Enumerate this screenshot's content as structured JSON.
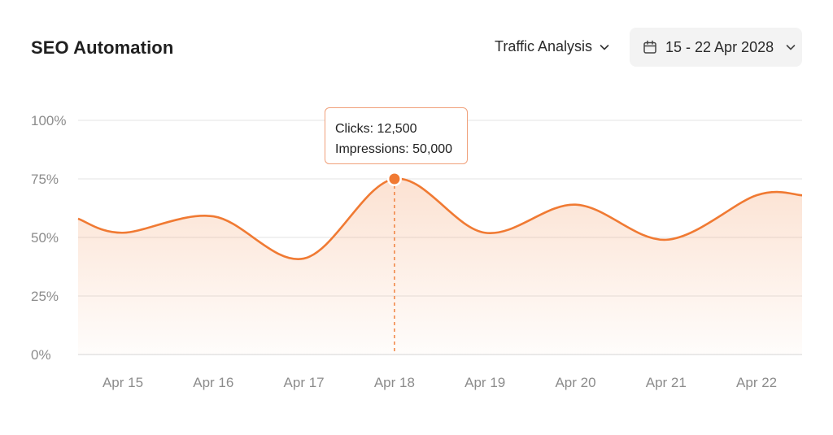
{
  "header": {
    "title": "SEO Automation",
    "filter_label": "Traffic Analysis",
    "date_range": "15 - 22 Apr 2028"
  },
  "tooltip": {
    "line1": "Clicks: 12,500",
    "line2": "Impressions: 50,000"
  },
  "colors": {
    "accent": "#f07a33",
    "grid": "#e3e3e3",
    "axis_text": "#8c8c8c"
  },
  "chart_data": {
    "type": "area",
    "x": [
      "Apr 15",
      "Apr 16",
      "Apr 17",
      "Apr 18",
      "Apr 19",
      "Apr 20",
      "Apr 21",
      "Apr 22"
    ],
    "values": [
      52,
      59,
      41,
      75,
      52,
      64,
      49,
      68
    ],
    "ylim": [
      0,
      100
    ],
    "yticks": [
      "0%",
      "25%",
      "50%",
      "75%",
      "100%"
    ],
    "highlight_category": "Apr 18",
    "grid": true
  }
}
